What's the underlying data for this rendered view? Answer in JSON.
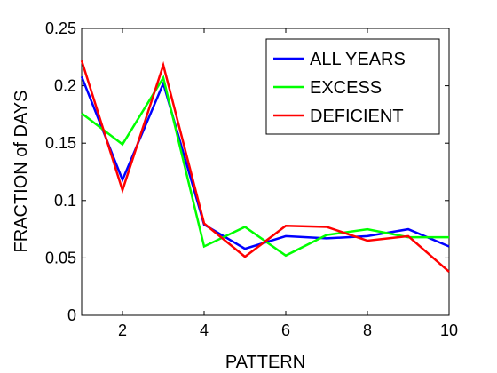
{
  "chart_data": {
    "type": "line",
    "title": "",
    "xlabel": "PATTERN",
    "ylabel": "FRACTION of DAYS",
    "xlim": [
      1,
      10
    ],
    "ylim": [
      0,
      0.25
    ],
    "x": [
      1,
      2,
      3,
      4,
      5,
      6,
      7,
      8,
      9,
      10
    ],
    "xticks": [
      2,
      4,
      6,
      8,
      10
    ],
    "xtick_labels": [
      "2",
      "4",
      "6",
      "8",
      "10"
    ],
    "yticks": [
      0,
      0.05,
      0.1,
      0.15,
      0.2,
      0.25
    ],
    "ytick_labels": [
      "0",
      "0.05",
      "0.1",
      "0.15",
      "0.2",
      "0.25"
    ],
    "grid": false,
    "legend_position": "top-right",
    "series": [
      {
        "name": "ALL YEARS",
        "color": "#0000ff",
        "values": [
          0.208,
          0.118,
          0.202,
          0.079,
          0.058,
          0.069,
          0.067,
          0.069,
          0.075,
          0.06
        ]
      },
      {
        "name": "EXCESS",
        "color": "#00ff00",
        "values": [
          0.176,
          0.149,
          0.207,
          0.06,
          0.077,
          0.052,
          0.07,
          0.075,
          0.068,
          0.068
        ]
      },
      {
        "name": "DEFICIENT",
        "color": "#ff0000",
        "values": [
          0.222,
          0.109,
          0.218,
          0.08,
          0.051,
          0.078,
          0.077,
          0.065,
          0.069,
          0.038
        ]
      }
    ]
  }
}
